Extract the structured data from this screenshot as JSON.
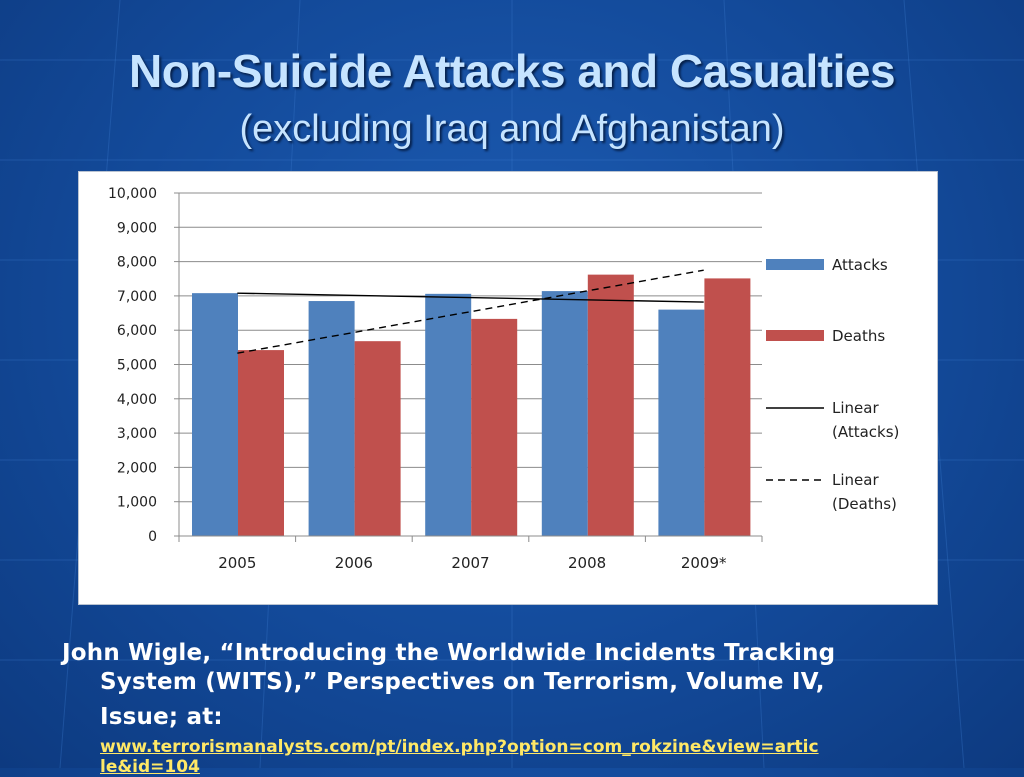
{
  "slide": {
    "title": "Non-Suicide Attacks and Casualties",
    "subtitle": "(excluding Iraq and Afghanistan)",
    "citation_line1": "John Wigle, “Introducing the Worldwide Incidents Tracking",
    "citation_line2": "System (WITS),” Perspectives on Terrorism, Volume IV,",
    "citation_line3": "Issue;  at:",
    "citation_link_line1": "www.terrorismanalysts.com/pt/index.php?option=com_rokzine&view=artic",
    "citation_link_line2": "le&id=104"
  },
  "colors": {
    "attacks": "#4f81bd",
    "deaths": "#c0504d",
    "title": "#c6e4ff",
    "link": "#ffe866"
  },
  "chart_data": {
    "type": "bar",
    "categories": [
      "2005",
      "2006",
      "2007",
      "2008",
      "2009*"
    ],
    "series": [
      {
        "name": "Attacks",
        "values": [
          7080,
          6850,
          7060,
          7140,
          6600
        ]
      },
      {
        "name": "Deaths",
        "values": [
          5420,
          5680,
          6330,
          7620,
          7510
        ]
      }
    ],
    "trendlines": [
      {
        "name": "Linear\n(Attacks)",
        "style": "solid",
        "start": 7080,
        "end": 6820
      },
      {
        "name": "Linear\n(Deaths)",
        "style": "dashed",
        "start": 5330,
        "end": 7750
      }
    ],
    "ylim": [
      0,
      10000
    ],
    "yticks": [
      "0",
      "1,000",
      "2,000",
      "3,000",
      "4,000",
      "5,000",
      "6,000",
      "7,000",
      "8,000",
      "9,000",
      "10,000"
    ],
    "grid": true,
    "legend_position": "right",
    "legend": [
      "Attacks",
      "Deaths",
      "Linear\n(Attacks)",
      "Linear\n(Deaths)"
    ]
  }
}
